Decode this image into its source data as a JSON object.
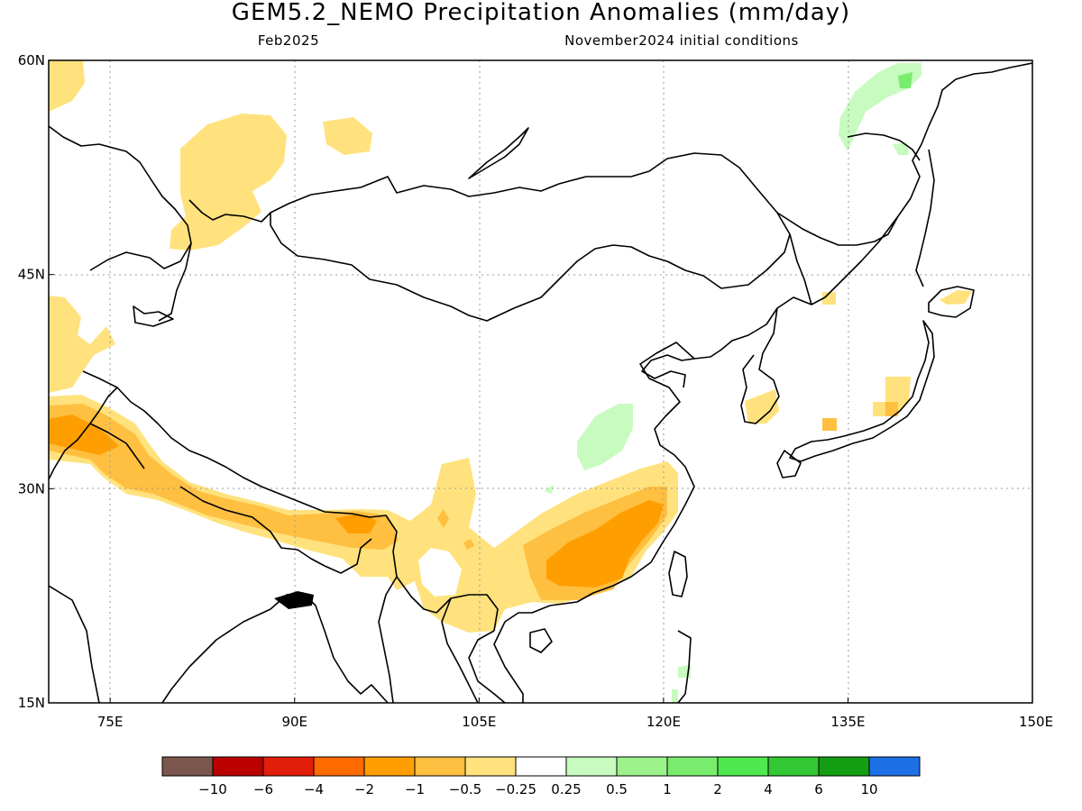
{
  "header": {
    "title": "GEM5.2_NEMO Precipitation Anomalies (mm/day)",
    "valid_month": "Feb2025",
    "initial_conditions": "November2024 initial conditions"
  },
  "map": {
    "lon_range": [
      70,
      150
    ],
    "lat_range": [
      15,
      60
    ],
    "lon_ticks": [
      {
        "lon": 75,
        "label": "75E"
      },
      {
        "lon": 90,
        "label": "90E"
      },
      {
        "lon": 105,
        "label": "105E"
      },
      {
        "lon": 120,
        "label": "120E"
      },
      {
        "lon": 135,
        "label": "135E"
      },
      {
        "lon": 150,
        "label": "150E"
      }
    ],
    "lat_ticks": [
      {
        "lat": 60,
        "label": "60N"
      },
      {
        "lat": 45,
        "label": "45N"
      },
      {
        "lat": 30,
        "label": "30N"
      },
      {
        "lat": 15,
        "label": "15N"
      }
    ],
    "grid": true
  },
  "legend": {
    "colors": [
      "#7b564c",
      "#bb0000",
      "#e21e0a",
      "#ff6a00",
      "#ff9e00",
      "#ffbf40",
      "#ffe27d",
      "#ffffff",
      "#c8fbbf",
      "#9df28c",
      "#79ec6d",
      "#4fe84e",
      "#33c833",
      "#139d13",
      "#1d6fe6"
    ],
    "labels": [
      "−10",
      "−6",
      "−4",
      "−2",
      "−1",
      "−0.5",
      "−0.25",
      "0.25",
      "0.5",
      "1",
      "2",
      "4",
      "6",
      "10"
    ]
  }
}
